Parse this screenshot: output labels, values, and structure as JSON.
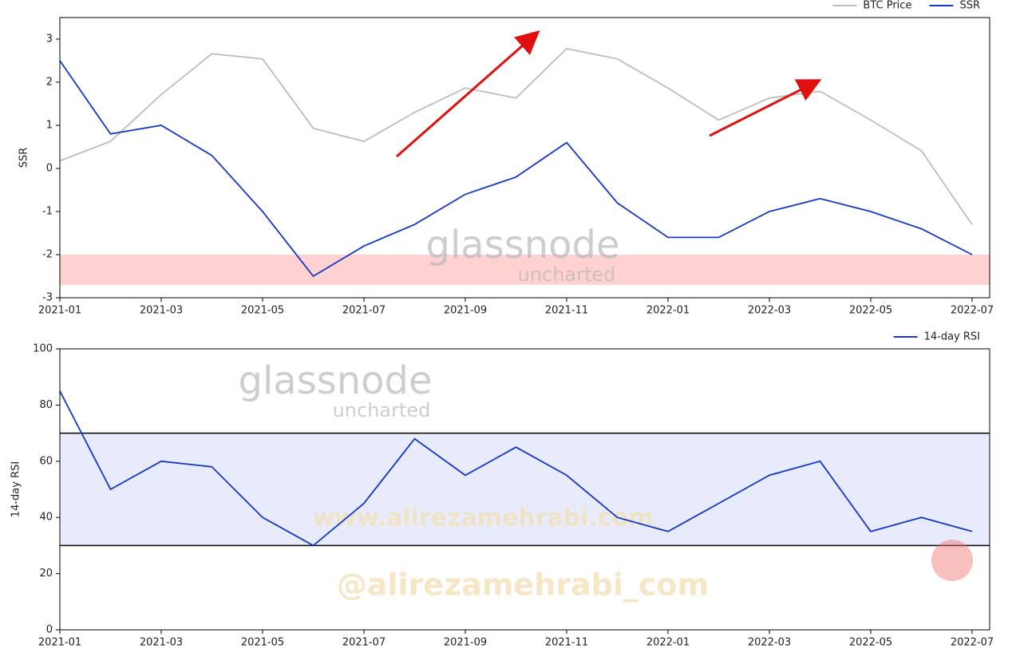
{
  "chart_data": [
    {
      "type": "line",
      "y_label": "SSR",
      "x": [
        "2021-01",
        "2021-02",
        "2021-03",
        "2021-04",
        "2021-05",
        "2021-06",
        "2021-07",
        "2021-08",
        "2021-09",
        "2021-10",
        "2021-11",
        "2021-12",
        "2022-01",
        "2022-02",
        "2022-03",
        "2022-04",
        "2022-05",
        "2022-06",
        "2022-07"
      ],
      "xlim": [
        "2021-01",
        "2022-07"
      ],
      "xticks": [
        "2021-01",
        "2021-03",
        "2021-05",
        "2021-07",
        "2021-09",
        "2021-11",
        "2022-01",
        "2022-03",
        "2022-05",
        "2022-07"
      ],
      "ylim": [
        -3,
        3.5
      ],
      "yticks": [
        -3,
        -2,
        -1,
        0,
        1,
        2,
        3
      ],
      "y2lim": [
        11700,
        75000
      ],
      "y2_log": true,
      "bands": [
        {
          "from": -2.7,
          "to": -2,
          "color": "#ffc9c9"
        }
      ],
      "series": [
        {
          "name": "BTC Price",
          "color": "#bdbdbd",
          "axis": "y2",
          "values": [
            29000,
            33000,
            45000,
            59000,
            57000,
            36000,
            33000,
            40000,
            47000,
            44000,
            61000,
            57000,
            47000,
            38000,
            44000,
            46000,
            38000,
            31000,
            19000
          ]
        },
        {
          "name": "SSR",
          "color": "#1437c8",
          "values": [
            2.5,
            0.8,
            1.0,
            0.3,
            -1.0,
            -2.5,
            -1.8,
            -1.3,
            -0.6,
            -0.2,
            0.6,
            -0.8,
            -1.6,
            -1.6,
            -1.0,
            -0.7,
            -1.0,
            -1.4,
            -2.0
          ]
        }
      ],
      "watermark": [
        "glassnode",
        "uncharted"
      ]
    },
    {
      "type": "line",
      "y_label": "14-day RSI",
      "x": [
        "2021-01",
        "2021-02",
        "2021-03",
        "2021-04",
        "2021-05",
        "2021-06",
        "2021-07",
        "2021-08",
        "2021-09",
        "2021-10",
        "2021-11",
        "2021-12",
        "2022-01",
        "2022-02",
        "2022-03",
        "2022-04",
        "2022-05",
        "2022-06",
        "2022-07"
      ],
      "xlim": [
        "2021-01",
        "2022-07"
      ],
      "xticks": [
        "2021-01",
        "2021-03",
        "2021-05",
        "2021-07",
        "2021-09",
        "2021-11",
        "2022-01",
        "2022-03",
        "2022-05",
        "2022-07"
      ],
      "ylim": [
        0,
        100
      ],
      "yticks": [
        0,
        20,
        40,
        60,
        80,
        100
      ],
      "bands": [
        {
          "from": 30,
          "to": 70,
          "color": "#e3e8fb"
        }
      ],
      "hlines": [
        30,
        70
      ],
      "series": [
        {
          "name": "14-day RSI",
          "color": "#1437c8",
          "values": [
            85,
            50,
            60,
            58,
            40,
            30,
            45,
            68,
            55,
            65,
            55,
            40,
            35,
            45,
            55,
            60,
            35,
            40,
            35
          ]
        }
      ],
      "watermark": [
        "glassnode",
        "uncharted",
        "www.alirezamehrabi.com",
        "@alirezamehrabi_com"
      ]
    }
  ]
}
